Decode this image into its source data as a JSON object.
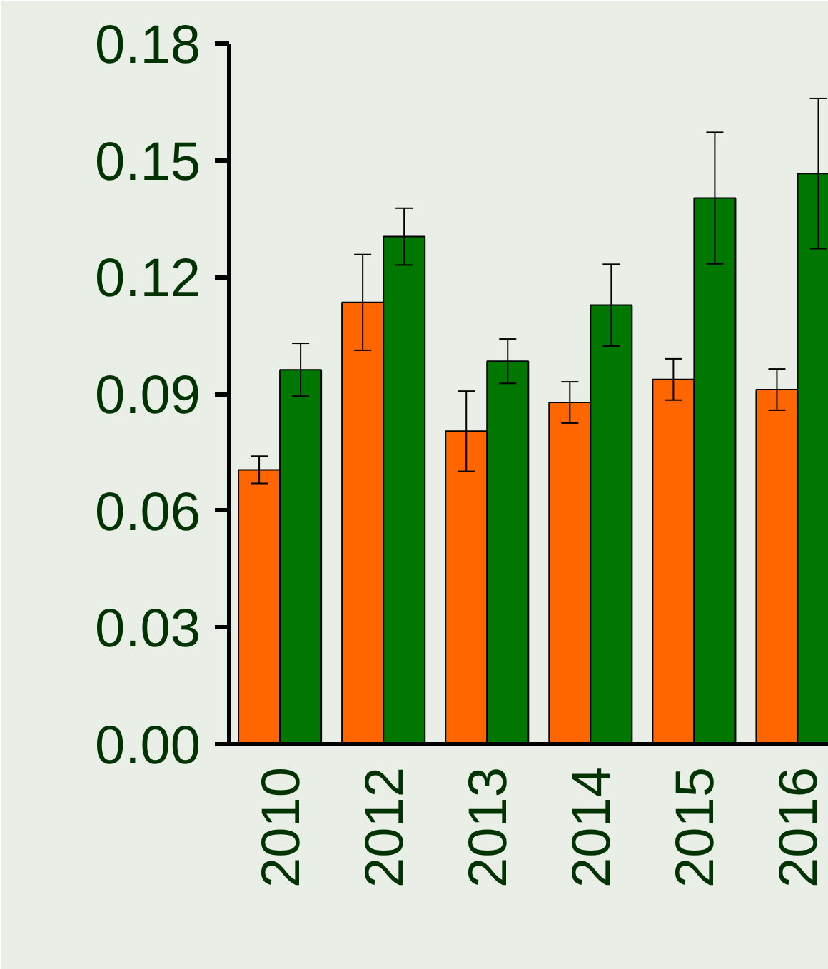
{
  "chart_data": {
    "type": "bar",
    "categories": [
      "2010",
      "2012",
      "2013",
      "2014",
      "2015",
      "2016"
    ],
    "series": [
      {
        "color": "#ff6600",
        "values": [
          0.0705,
          0.1135,
          0.0804,
          0.0878,
          0.0937,
          0.0911
        ],
        "errors": [
          0.0035,
          0.0123,
          0.0103,
          0.0053,
          0.0053,
          0.0053
        ]
      },
      {
        "color": "#007700",
        "values": [
          0.0962,
          0.1304,
          0.0984,
          0.1128,
          0.1403,
          0.1466
        ],
        "errors": [
          0.0068,
          0.0073,
          0.0057,
          0.0105,
          0.0169,
          0.0193
        ]
      }
    ],
    "ylim": [
      0,
      0.18
    ],
    "yticks": [
      {
        "value": 0,
        "label": "0.00"
      },
      0.03,
      0.06,
      0.09,
      0.12,
      0.15,
      0.18
    ],
    "grid": false
  }
}
